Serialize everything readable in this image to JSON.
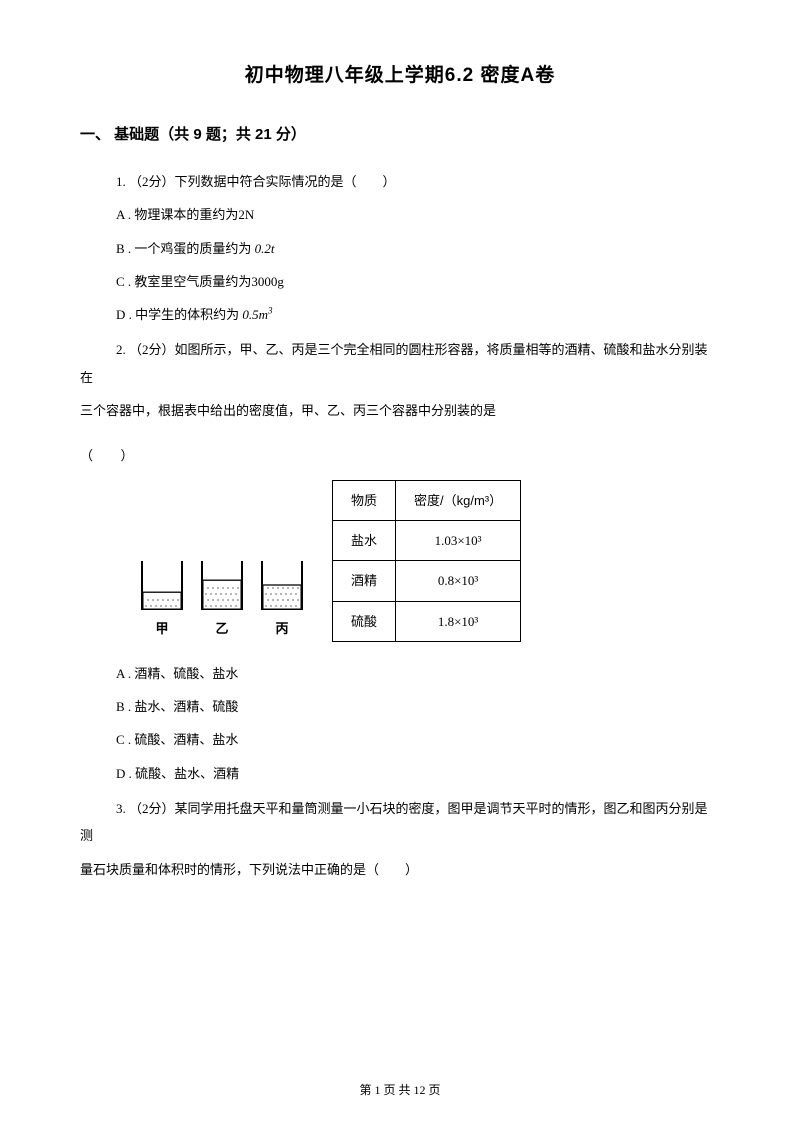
{
  "title": "初中物理八年级上学期6.2 密度A卷",
  "section": {
    "label": "一、 基础题（共 9 题；共 21 分）"
  },
  "q1": {
    "stem": "1.  （2分）下列数据中符合实际情况的是（　　）",
    "optA": "A .  物理课本的重约为2N",
    "optB_prefix": "B .  一个鸡蛋的质量约为 ",
    "optB_val": "0.2t",
    "optC": "C .  教室里空气质量约为3000g",
    "optD_prefix": "D .  中学生的体积约为 ",
    "optD_val": "0.5m"
  },
  "q2": {
    "stem_l1": "2.   （2分）如图所示，甲、乙、丙是三个完全相同的圆柱形容器，将质量相等的酒精、硫酸和盐水分别装在",
    "stem_l2": "三个容器中，根据表中给出的密度值，甲、乙、丙三个容器中分别装的是",
    "stem_l3": "（　　）",
    "cylinders": {
      "labels": [
        "甲",
        "乙",
        "丙"
      ],
      "fill_ratios": [
        0.35,
        0.6,
        0.5
      ],
      "width": 44,
      "height": 52,
      "stroke": "#000000",
      "stroke_width": 2
    },
    "table": {
      "headers": [
        "物质",
        "密度/（kg/m³）"
      ],
      "rows": [
        [
          "盐水",
          "1.03×10³"
        ],
        [
          "酒精",
          "0.8×10³"
        ],
        [
          "硫酸",
          "1.8×10³"
        ]
      ],
      "border_color": "#000000"
    },
    "optA": "A .  酒精、硫酸、盐水",
    "optB": "B .  盐水、酒精、硫酸",
    "optC": "C .  硫酸、酒精、盐水",
    "optD": "D .  硫酸、盐水、酒精"
  },
  "q3": {
    "stem_l1": "3.   （2分）某同学用托盘天平和量筒测量一小石块的密度，图甲是调节天平时的情形，图乙和图丙分别是测",
    "stem_l2": "量石块质量和体积时的情形，下列说法中正确的是（　　）"
  },
  "footer": {
    "prefix": "第 ",
    "cur": "1",
    "mid": " 页 共 ",
    "total": "12",
    "suffix": " 页"
  }
}
